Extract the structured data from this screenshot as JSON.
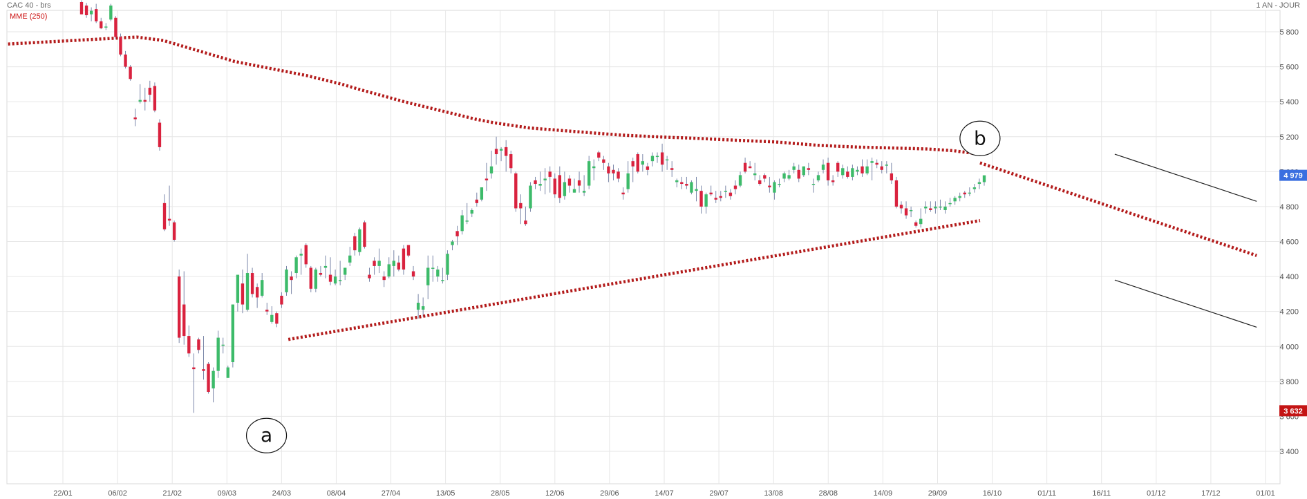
{
  "header": {
    "instrument": "CAC 40 - brs",
    "period": "1 AN - JOUR"
  },
  "indicator": {
    "label": "MME (250)",
    "color": "#cc1111"
  },
  "colors": {
    "up": "#3dbb6a",
    "down": "#d9223e",
    "grid": "#e6e6e6",
    "trendline": "#b31b1b",
    "last_price_bg": "#3b6fe0",
    "low_price_bg": "#c41414"
  },
  "chart_data": {
    "type": "candlestick",
    "title": "CAC 40 - brs",
    "ylim": [
      3300,
      5980
    ],
    "y_ticks": [
      "3 400",
      "3 600",
      "3 800",
      "4 000",
      "4 200",
      "4 400",
      "4 600",
      "4 800",
      "5 000",
      "5 200",
      "5 400",
      "5 600",
      "5 800"
    ],
    "x_ticks": [
      "22/01",
      "06/02",
      "21/02",
      "09/03",
      "24/03",
      "08/04",
      "27/04",
      "13/05",
      "28/05",
      "12/06",
      "29/06",
      "14/07",
      "29/07",
      "13/08",
      "28/08",
      "14/09",
      "29/09",
      "16/10",
      "01/11",
      "16/11",
      "01/12",
      "17/12",
      "01/01"
    ],
    "price_tags": [
      {
        "label": "4 979",
        "value": 4979,
        "kind": "last"
      },
      {
        "label": "3 632",
        "value": 3632,
        "kind": "low"
      }
    ],
    "candles": [
      [
        5970,
        5980,
        5900,
        5900
      ],
      [
        5950,
        5965,
        5880,
        5895
      ],
      [
        5900,
        5940,
        5860,
        5920
      ],
      [
        5930,
        5960,
        5850,
        5860
      ],
      [
        5860,
        5880,
        5815,
        5820
      ],
      [
        5830,
        5850,
        5810,
        5830
      ],
      [
        5870,
        5960,
        5860,
        5950
      ],
      [
        5880,
        5890,
        5760,
        5770
      ],
      [
        5770,
        5790,
        5660,
        5670
      ],
      [
        5670,
        5690,
        5590,
        5600
      ],
      [
        5600,
        5610,
        5520,
        5530
      ],
      [
        5310,
        5360,
        5260,
        5300
      ],
      [
        5400,
        5500,
        5390,
        5410
      ],
      [
        5410,
        5480,
        5350,
        5400
      ],
      [
        5480,
        5520,
        5400,
        5440
      ],
      [
        5490,
        5510,
        5340,
        5350
      ],
      [
        5280,
        5300,
        5120,
        5140
      ],
      [
        4820,
        4870,
        4660,
        4670
      ],
      [
        4730,
        4920,
        4690,
        4720
      ],
      [
        4710,
        4720,
        4600,
        4610
      ],
      [
        4400,
        4440,
        4020,
        4050
      ],
      [
        4240,
        4430,
        4010,
        4060
      ],
      [
        4060,
        4120,
        3940,
        3960
      ],
      [
        3880,
        3960,
        3620,
        3870
      ],
      [
        4040,
        4050,
        3960,
        3980
      ],
      [
        3870,
        4060,
        3810,
        3860
      ],
      [
        3900,
        3910,
        3730,
        3740
      ],
      [
        3760,
        3880,
        3680,
        3860
      ],
      [
        3860,
        4090,
        3820,
        4050
      ],
      [
        4010,
        4050,
        3960,
        4010
      ],
      [
        3820,
        3890,
        3820,
        3880
      ],
      [
        3910,
        4240,
        3880,
        4240
      ],
      [
        4250,
        4400,
        4200,
        4410
      ],
      [
        4360,
        4440,
        4190,
        4240
      ],
      [
        4210,
        4530,
        4200,
        4420
      ],
      [
        4420,
        4450,
        4280,
        4300
      ],
      [
        4340,
        4360,
        4220,
        4280
      ],
      [
        4290,
        4420,
        4280,
        4380
      ],
      [
        4210,
        4250,
        4180,
        4200
      ],
      [
        4140,
        4230,
        4130,
        4180
      ],
      [
        4190,
        4200,
        4110,
        4130
      ],
      [
        4290,
        4310,
        4220,
        4240
      ],
      [
        4310,
        4460,
        4290,
        4440
      ],
      [
        4400,
        4430,
        4300,
        4380
      ],
      [
        4420,
        4520,
        4390,
        4510
      ],
      [
        4520,
        4560,
        4410,
        4530
      ],
      [
        4580,
        4590,
        4450,
        4470
      ],
      [
        4450,
        4460,
        4310,
        4330
      ],
      [
        4330,
        4450,
        4310,
        4440
      ],
      [
        4420,
        4460,
        4400,
        4410
      ],
      [
        4450,
        4520,
        4390,
        4460
      ],
      [
        4410,
        4510,
        4350,
        4370
      ],
      [
        4360,
        4440,
        4350,
        4400
      ],
      [
        4380,
        4490,
        4350,
        4380
      ],
      [
        4410,
        4450,
        4380,
        4450
      ],
      [
        4480,
        4570,
        4460,
        4520
      ],
      [
        4630,
        4650,
        4520,
        4550
      ],
      [
        4540,
        4680,
        4520,
        4670
      ],
      [
        4710,
        4720,
        4560,
        4570
      ],
      [
        4410,
        4450,
        4370,
        4390
      ],
      [
        4490,
        4510,
        4410,
        4460
      ],
      [
        4460,
        4560,
        4420,
        4490
      ],
      [
        4400,
        4430,
        4340,
        4380
      ],
      [
        4400,
        4510,
        4390,
        4470
      ],
      [
        4460,
        4550,
        4400,
        4490
      ],
      [
        4480,
        4520,
        4430,
        4440
      ],
      [
        4560,
        4580,
        4410,
        4440
      ],
      [
        4580,
        4580,
        4510,
        4520
      ],
      [
        4430,
        4460,
        4380,
        4400
      ],
      [
        4210,
        4300,
        4160,
        4250
      ],
      [
        4210,
        4280,
        4170,
        4230
      ],
      [
        4350,
        4520,
        4270,
        4450
      ],
      [
        4450,
        4520,
        4370,
        4450
      ],
      [
        4400,
        4460,
        4370,
        4440
      ],
      [
        4380,
        4450,
        4360,
        4380
      ],
      [
        4410,
        4550,
        4380,
        4530
      ],
      [
        4580,
        4610,
        4550,
        4600
      ],
      [
        4660,
        4690,
        4580,
        4630
      ],
      [
        4660,
        4780,
        4640,
        4750
      ],
      [
        4720,
        4820,
        4700,
        4720
      ],
      [
        4760,
        4790,
        4740,
        4780
      ],
      [
        4840,
        4880,
        4800,
        4820
      ],
      [
        4840,
        4910,
        4830,
        4910
      ],
      [
        4960,
        5050,
        4890,
        4950
      ],
      [
        4990,
        5120,
        4960,
        5030
      ],
      [
        5130,
        5200,
        5040,
        5100
      ],
      [
        5120,
        5140,
        5060,
        5130
      ],
      [
        5140,
        5180,
        5000,
        5090
      ],
      [
        5100,
        5120,
        4990,
        5020
      ],
      [
        4990,
        5000,
        4770,
        4790
      ],
      [
        4820,
        4870,
        4700,
        4790
      ],
      [
        4720,
        4800,
        4690,
        4700
      ],
      [
        4790,
        4940,
        4770,
        4920
      ],
      [
        4950,
        4970,
        4900,
        4930
      ],
      [
        4920,
        5000,
        4890,
        4930
      ],
      [
        4950,
        5020,
        4870,
        4960
      ],
      [
        5000,
        5030,
        4880,
        4970
      ],
      [
        4960,
        4990,
        4850,
        4870
      ],
      [
        4980,
        5030,
        4820,
        4850
      ],
      [
        4860,
        5000,
        4840,
        4940
      ],
      [
        4960,
        4980,
        4880,
        4920
      ],
      [
        4880,
        4960,
        4880,
        4900
      ],
      [
        4950,
        5000,
        4880,
        4920
      ],
      [
        4880,
        4980,
        4860,
        4890
      ],
      [
        4920,
        5090,
        4900,
        5060
      ],
      [
        5020,
        5070,
        4950,
        5030
      ],
      [
        5110,
        5120,
        5060,
        5080
      ],
      [
        5070,
        5090,
        5010,
        5050
      ],
      [
        5030,
        5050,
        4940,
        4990
      ],
      [
        5010,
        5040,
        4950,
        4990
      ],
      [
        5000,
        5020,
        4940,
        4960
      ],
      [
        4880,
        4910,
        4840,
        4870
      ],
      [
        4900,
        5060,
        4880,
        4990
      ],
      [
        5060,
        5080,
        4940,
        5030
      ],
      [
        5100,
        5110,
        4990,
        5000
      ],
      [
        5040,
        5100,
        5000,
        5060
      ],
      [
        5030,
        5050,
        4980,
        5010
      ],
      [
        5060,
        5110,
        5030,
        5090
      ],
      [
        5090,
        5110,
        5050,
        5090
      ],
      [
        5110,
        5160,
        5000,
        5040
      ],
      [
        5070,
        5090,
        5010,
        5070
      ],
      [
        5020,
        5060,
        4970,
        5010
      ],
      [
        4940,
        4960,
        4910,
        4950
      ],
      [
        4940,
        4970,
        4900,
        4930
      ],
      [
        4930,
        4970,
        4900,
        4920
      ],
      [
        4880,
        4950,
        4870,
        4940
      ],
      [
        4890,
        4970,
        4830,
        4900
      ],
      [
        4890,
        4920,
        4760,
        4800
      ],
      [
        4800,
        4880,
        4760,
        4870
      ],
      [
        4880,
        4920,
        4860,
        4870
      ],
      [
        4850,
        4890,
        4820,
        4840
      ],
      [
        4860,
        4890,
        4830,
        4850
      ],
      [
        4890,
        4920,
        4850,
        4890
      ],
      [
        4880,
        4900,
        4840,
        4860
      ],
      [
        4920,
        4950,
        4870,
        4900
      ],
      [
        4920,
        5000,
        4910,
        4980
      ],
      [
        5050,
        5080,
        4990,
        5000
      ],
      [
        5030,
        5060,
        5020,
        5020
      ],
      [
        4980,
        5050,
        4950,
        4990
      ],
      [
        4950,
        4980,
        4920,
        4930
      ],
      [
        4980,
        4990,
        4940,
        4960
      ],
      [
        4920,
        4970,
        4880,
        4910
      ],
      [
        4880,
        4950,
        4840,
        4940
      ],
      [
        4930,
        4960,
        4910,
        4930
      ],
      [
        4960,
        5000,
        4940,
        4990
      ],
      [
        4960,
        5010,
        4950,
        4980
      ],
      [
        5010,
        5050,
        4990,
        5030
      ],
      [
        5010,
        5040,
        4940,
        4960
      ],
      [
        4980,
        5030,
        4970,
        5030
      ],
      [
        5020,
        5050,
        4980,
        5010
      ],
      [
        4930,
        4960,
        4880,
        4930
      ],
      [
        4950,
        5000,
        4940,
        4980
      ],
      [
        5010,
        5070,
        4990,
        5040
      ],
      [
        5050,
        5080,
        4920,
        4950
      ],
      [
        4950,
        4980,
        4920,
        4940
      ],
      [
        5050,
        5060,
        4970,
        5000
      ],
      [
        4980,
        5040,
        4960,
        5020
      ],
      [
        5000,
        5030,
        4960,
        4970
      ],
      [
        4970,
        5040,
        4950,
        5020
      ],
      [
        5000,
        5030,
        4980,
        5010
      ],
      [
        5030,
        5070,
        4970,
        4990
      ],
      [
        4990,
        5070,
        4980,
        5030
      ],
      [
        5050,
        5080,
        4950,
        5060
      ],
      [
        5050,
        5070,
        5020,
        5040
      ],
      [
        5030,
        5060,
        4990,
        5010
      ],
      [
        5040,
        5060,
        4990,
        5040
      ],
      [
        4990,
        5050,
        4930,
        4950
      ],
      [
        4950,
        4970,
        4790,
        4800
      ],
      [
        4810,
        4830,
        4760,
        4790
      ],
      [
        4790,
        4830,
        4730,
        4750
      ],
      [
        4780,
        4800,
        4740,
        4780
      ],
      [
        4710,
        4720,
        4680,
        4690
      ],
      [
        4700,
        4790,
        4680,
        4730
      ],
      [
        4790,
        4830,
        4760,
        4800
      ],
      [
        4790,
        4830,
        4770,
        4780
      ],
      [
        4790,
        4830,
        4760,
        4800
      ],
      [
        4800,
        4840,
        4780,
        4800
      ],
      [
        4780,
        4830,
        4760,
        4800
      ],
      [
        4820,
        4850,
        4800,
        4820
      ],
      [
        4830,
        4860,
        4810,
        4850
      ],
      [
        4850,
        4880,
        4830,
        4860
      ],
      [
        4880,
        4890,
        4850,
        4870
      ],
      [
        4880,
        4910,
        4860,
        4880
      ],
      [
        4900,
        4930,
        4880,
        4910
      ],
      [
        4930,
        4960,
        4900,
        4940
      ],
      [
        4940,
        4970,
        4920,
        4979
      ]
    ],
    "moving_average": {
      "name": "MME (250)",
      "points": [
        [
          12,
          5730
        ],
        [
          300,
          5770
        ],
        [
          360,
          5750
        ],
        [
          440,
          5690
        ],
        [
          520,
          5630
        ],
        [
          600,
          5590
        ],
        [
          680,
          5550
        ],
        [
          760,
          5500
        ],
        [
          800,
          5470
        ],
        [
          900,
          5400
        ],
        [
          980,
          5350
        ],
        [
          1060,
          5300
        ],
        [
          1100,
          5280
        ],
        [
          1180,
          5250
        ],
        [
          1280,
          5230
        ],
        [
          1380,
          5210
        ],
        [
          1460,
          5200
        ],
        [
          1560,
          5190
        ],
        [
          1640,
          5180
        ],
        [
          1730,
          5170
        ],
        [
          1830,
          5150
        ],
        [
          1920,
          5140
        ],
        [
          2000,
          5135
        ],
        [
          2070,
          5130
        ],
        [
          2130,
          5120
        ],
        [
          2190,
          5100
        ]
      ]
    },
    "trendlines": [
      {
        "from": [
          640,
          4040
        ],
        "to": [
          2190,
          4720
        ],
        "style": "dotted"
      },
      {
        "from": [
          2190,
          5050
        ],
        "to": [
          2810,
          4520
        ],
        "style": "dotted"
      },
      {
        "from": [
          2492,
          5100
        ],
        "to": [
          2810,
          4830
        ],
        "style": "solid"
      },
      {
        "from": [
          2492,
          4380
        ],
        "to": [
          2810,
          4110
        ],
        "style": "solid"
      }
    ],
    "annotations": [
      {
        "label": "a",
        "x": 591,
        "y": 3490
      },
      {
        "label": "b",
        "x": 2190,
        "y": 5190
      }
    ]
  }
}
